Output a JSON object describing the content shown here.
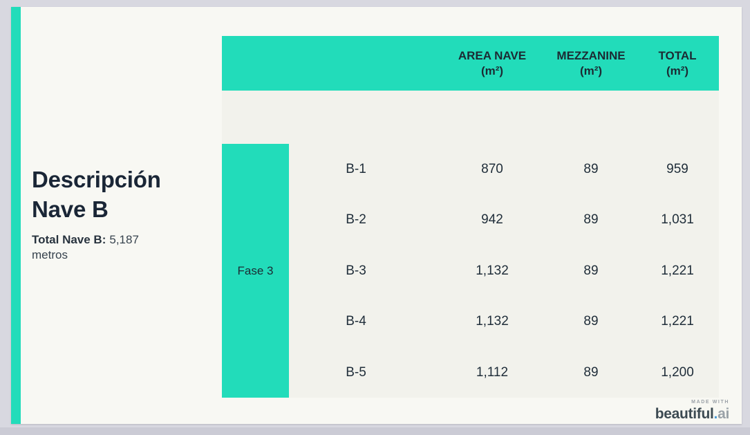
{
  "slide": {
    "title_line1": "Descripción",
    "title_line2": "Nave B",
    "subtitle_bold": "Total Nave B:",
    "subtitle_value": "5,187",
    "subtitle_line2": "metros"
  },
  "table": {
    "group_label": "Fase 3",
    "headers": [
      {
        "line1": "AREA NAVE",
        "line2": "(m²)"
      },
      {
        "line1": "MEZZANINE",
        "line2": "(m²)"
      },
      {
        "line1": "TOTAL",
        "line2": "(m²)"
      }
    ],
    "rows": [
      {
        "label": "B-1",
        "area": "870",
        "mezzanine": "89",
        "total": "959"
      },
      {
        "label": "B-2",
        "area": "942",
        "mezzanine": "89",
        "total": "1,031"
      },
      {
        "label": "B-3",
        "area": "1,132",
        "mezzanine": "89",
        "total": "1,221"
      },
      {
        "label": "B-4",
        "area": "1,132",
        "mezzanine": "89",
        "total": "1,221"
      },
      {
        "label": "B-5",
        "area": "1,112",
        "mezzanine": "89",
        "total": "1,200"
      }
    ]
  },
  "branding": {
    "made_with": "MADE WITH",
    "brand": "beautiful",
    "dot": ".",
    "suffix": "ai"
  },
  "colors": {
    "accent_teal": "#22dcba",
    "dark_text": "#1c2a33",
    "title_text": "#1a2636",
    "slide_bg": "#f8f8f3",
    "table_bg": "#f2f2ec",
    "frame_bg": "#d8d8e0",
    "brand_dot_blue": "#4a9bd5"
  }
}
